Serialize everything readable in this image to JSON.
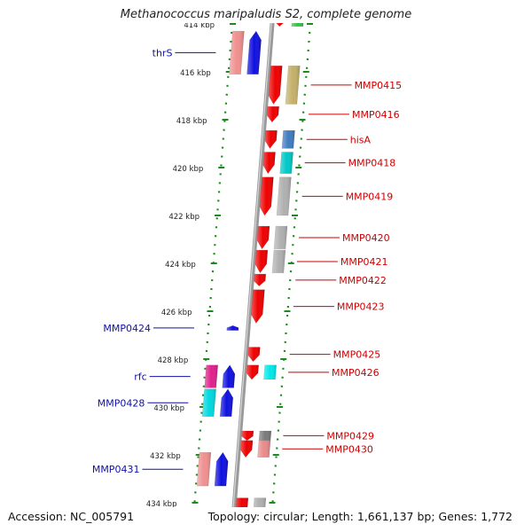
{
  "title": "Methanococcus maripaludis S2, complete genome",
  "footer": {
    "accession": "Accession: NC_005791",
    "summary": "Topology: circular; Length: 1,661,137 bp; Genes: 1,772"
  },
  "ruler": {
    "unit": "kbp",
    "ticks": [
      414,
      416,
      418,
      420,
      422,
      424,
      426,
      428,
      430,
      432,
      434
    ]
  },
  "colors": {
    "forward_gene": "#ee0000",
    "reverse_gene": "#1010e0",
    "forward_label": "#cc0000",
    "reverse_label": "#1010aa",
    "backbone": "#9a9a9a",
    "track_dots": "#1e8a1e",
    "tick_text": "#222222"
  },
  "forward_genes": [
    {
      "label": "MMP0415",
      "start": 415.75,
      "end": 417.35,
      "cog": "#c4b06a"
    },
    {
      "label": "MMP0416",
      "start": 417.45,
      "end": 418.1,
      "cog": ""
    },
    {
      "label": "hisA",
      "start": 418.45,
      "end": 419.2,
      "cog": "#3f7bbf"
    },
    {
      "label": "MMP0418",
      "start": 419.35,
      "end": 420.25,
      "cog": "#00c8c8"
    },
    {
      "label": "MMP0419",
      "start": 420.4,
      "end": 422.0,
      "cog": "#b0b0b0"
    },
    {
      "label": "MMP0420",
      "start": 422.45,
      "end": 423.4,
      "cog": "#b0b0b0"
    },
    {
      "label": "MMP0421",
      "start": 423.45,
      "end": 424.4,
      "cog": "#b0b0b0"
    },
    {
      "label": "MMP0422",
      "start": 424.45,
      "end": 424.95,
      "cog": ""
    },
    {
      "label": "MMP0423",
      "start": 425.1,
      "end": 426.5,
      "cog": ""
    },
    {
      "label": "MMP0425",
      "start": 427.5,
      "end": 428.1,
      "cog": ""
    },
    {
      "label": "MMP0426",
      "start": 428.25,
      "end": 428.85,
      "cog": "#00e8e8"
    },
    {
      "label": "MMP0429",
      "start": 431.0,
      "end": 431.4,
      "cog": "#7a7a7a"
    },
    {
      "label": "MMP0430",
      "start": 431.4,
      "end": 432.1,
      "cog": "#e88a8a"
    }
  ],
  "reverse_genes": [
    {
      "label": "thrS",
      "start": 414.3,
      "end": 416.1,
      "cog": "#f08f8f"
    },
    {
      "label": "MMP0424",
      "start": 426.6,
      "end": 426.8,
      "cog": ""
    },
    {
      "label": "rfc",
      "start": 428.25,
      "end": 429.2,
      "cog": "#e0208c"
    },
    {
      "label": "MMP0428",
      "start": 429.25,
      "end": 430.4,
      "cog": "#00d8e0"
    },
    {
      "label": "MMP0431",
      "start": 431.9,
      "end": 433.3,
      "cog": "#f09090"
    }
  ],
  "edge_genes": [
    {
      "start": 413.6,
      "end": 414.1,
      "strand": "forward",
      "cog": "#35c040"
    },
    {
      "start": 433.8,
      "end": 434.9,
      "strand": "forward",
      "cog": "#b0b0b0"
    },
    {
      "start": 434.6,
      "end": 435.2,
      "strand": "reverse",
      "cog": "#7a7a7a"
    }
  ]
}
